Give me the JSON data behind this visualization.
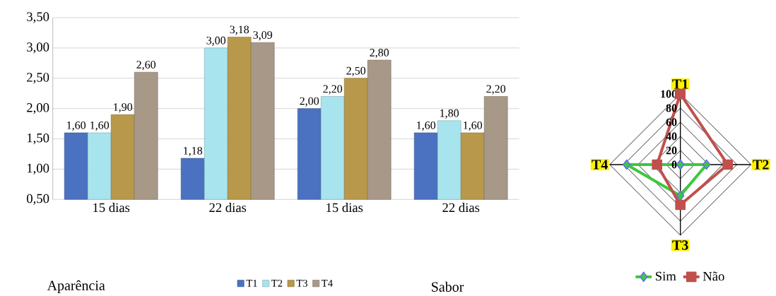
{
  "chart_data": [
    {
      "type": "bar",
      "categories": [
        "15 dias",
        "22 dias",
        "15 dias",
        "22 dias"
      ],
      "series": [
        {
          "name": "T1",
          "color": "#4a72c0",
          "values": [
            1.6,
            1.18,
            2.0,
            1.6
          ],
          "value_labels": [
            "1,60",
            "1,18",
            "2,00",
            "1,60"
          ]
        },
        {
          "name": "T2",
          "color": "#a8e4ee",
          "values": [
            1.6,
            3.0,
            2.2,
            1.8
          ],
          "value_labels": [
            "1,60",
            "3,00",
            "2,20",
            "1,80"
          ]
        },
        {
          "name": "T3",
          "color": "#b8984a",
          "values": [
            1.9,
            3.18,
            2.5,
            1.6
          ],
          "value_labels": [
            "1,90",
            "3,18",
            "2,50",
            "1,60"
          ]
        },
        {
          "name": "T4",
          "color": "#a89888",
          "values": [
            2.6,
            3.09,
            2.8,
            2.2
          ],
          "value_labels": [
            "2,60",
            "3,09",
            "2,80",
            "2,20"
          ]
        }
      ],
      "ylim": [
        0.5,
        3.5
      ],
      "yticks": [
        {
          "value": 0.5,
          "label": "0,50"
        },
        {
          "value": 1.0,
          "label": "1,00"
        },
        {
          "value": 1.5,
          "label": "1,50"
        },
        {
          "value": 2.0,
          "label": "2,00"
        },
        {
          "value": 2.5,
          "label": "2,50"
        },
        {
          "value": 3.0,
          "label": "3,00"
        },
        {
          "value": 3.5,
          "label": "3,50"
        }
      ],
      "grid": "y",
      "legend": "bottom",
      "annotations": [
        "Aparência",
        "Sabor"
      ]
    },
    {
      "type": "radar",
      "categories": [
        "T1",
        "T2",
        "T3",
        "T4"
      ],
      "series": [
        {
          "name": "Sim",
          "color": "#3cc83c",
          "marker": "diamond",
          "values": [
            0,
            37,
            44,
            76
          ]
        },
        {
          "name": "Não",
          "color": "#c0504d",
          "marker": "square",
          "values": [
            100,
            67,
            57,
            33
          ]
        }
      ],
      "ylim": [
        0,
        100
      ],
      "yticks": [
        0,
        20,
        40,
        60,
        80,
        100
      ],
      "legend": "bottom"
    }
  ]
}
